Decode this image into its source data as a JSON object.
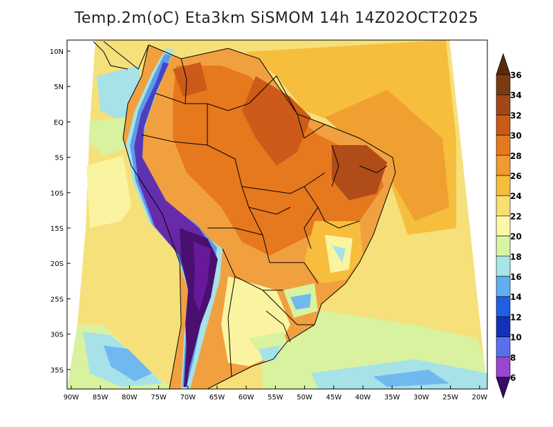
{
  "title": "Temp.2m(oC) Eta3km SiSMOM 14h 14Z02OCT2025",
  "map": {
    "lat_labels": [
      "10N",
      "5N",
      "EQ",
      "5S",
      "10S",
      "15S",
      "20S",
      "25S",
      "30S",
      "35S"
    ],
    "lon_labels": [
      "90W",
      "85W",
      "80W",
      "75W",
      "70W",
      "65W",
      "60W",
      "55W",
      "50W",
      "45W",
      "40W",
      "35W",
      "30W",
      "25W",
      "20W"
    ]
  },
  "colorbar": {
    "labels": [
      "36",
      "34",
      "32",
      "30",
      "28",
      "26",
      "24",
      "22",
      "20",
      "18",
      "16",
      "14",
      "12",
      "10",
      "8",
      "6"
    ],
    "top_color": "#5a2a0c",
    "bottom_color": "#3a0a6a",
    "colors": [
      "#7a3a10",
      "#a04818",
      "#c85a14",
      "#e6781e",
      "#f09a30",
      "#f6be3c",
      "#f8e070",
      "#faf8a8",
      "#d6f4a4",
      "#a6e6e8",
      "#60b0f0",
      "#2060e0",
      "#1430b8",
      "#5870f0",
      "#9a46d0",
      "#6a189a"
    ]
  }
}
